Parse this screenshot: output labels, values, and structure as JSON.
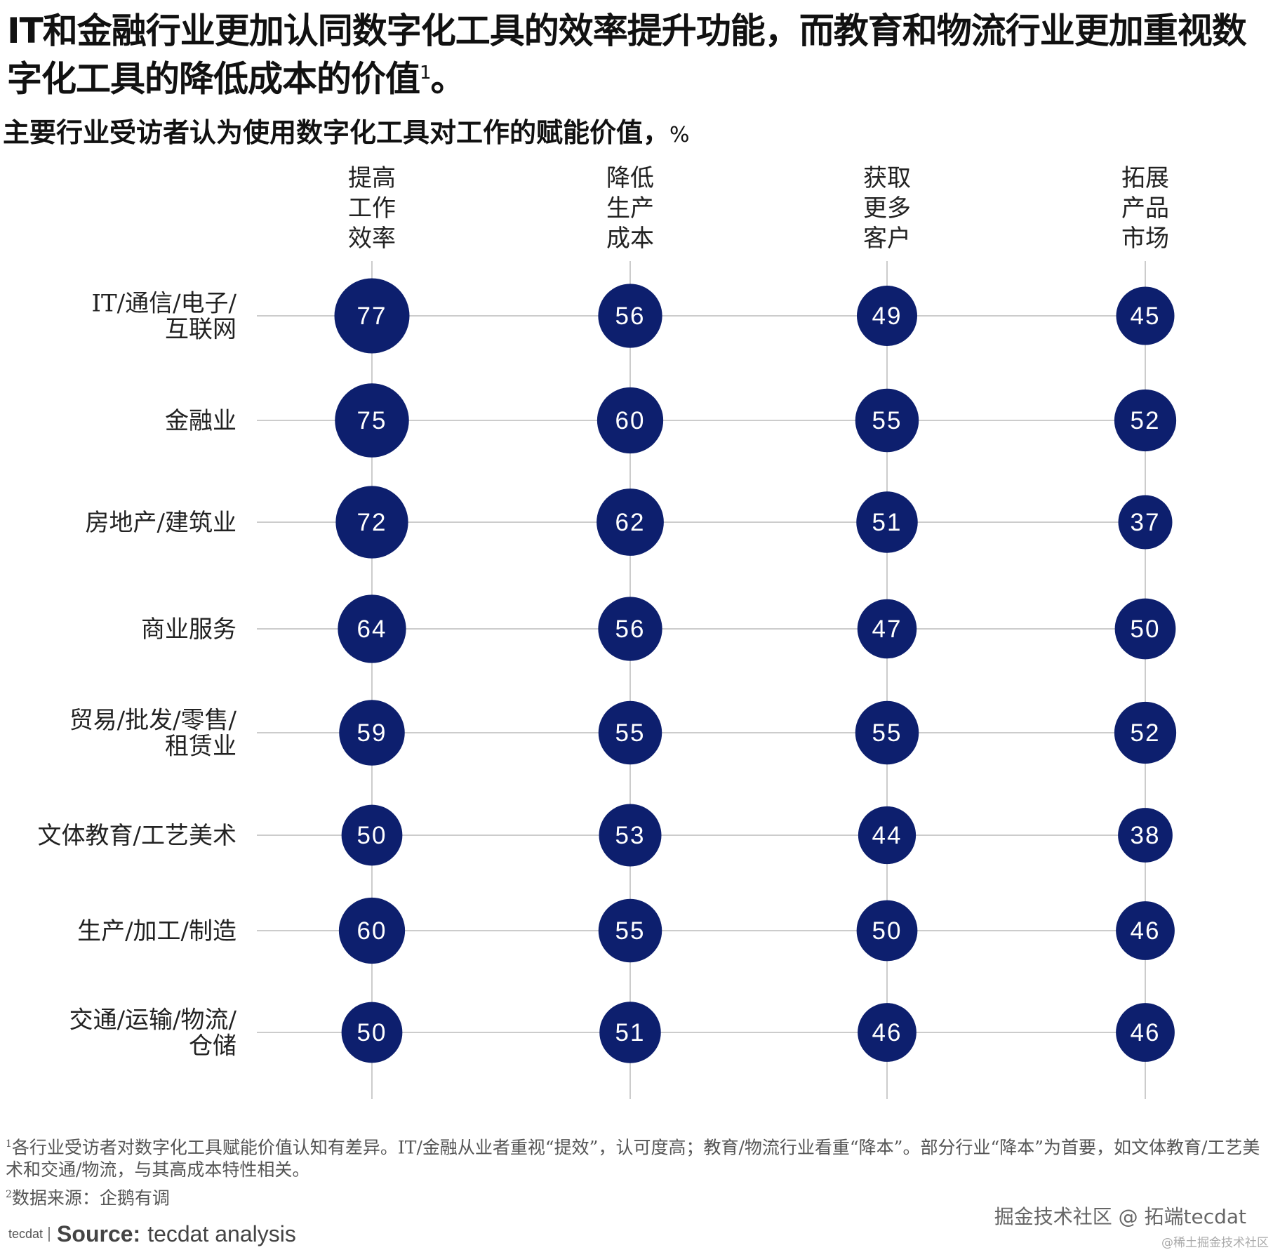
{
  "title": "IT和金融行业更加认同数字化工具的效率提升功能，而教育和物流行业更加重视数字化工具的降低成本的价值",
  "title_sup": "1",
  "title_end": "。",
  "subtitle": "主要行业受访者认为使用数字化工具对工作的赋能价值，",
  "subtitle_unit": "%",
  "colors": {
    "bubble": "#0d1f6e",
    "line": "#bbbbbb"
  },
  "chart_data": {
    "type": "bubble-matrix",
    "title": "主要行业受访者认为使用数字化工具对工作的赋能价值，%",
    "columns": [
      [
        "提高",
        "工作",
        "效率"
      ],
      [
        "降低",
        "生产",
        "成本"
      ],
      [
        "获取",
        "更多",
        "客户"
      ],
      [
        "拓展",
        "产品",
        "市场"
      ]
    ],
    "rows": [
      {
        "label": [
          "IT/通信/电子/",
          "互联网"
        ],
        "values": [
          77,
          56,
          49,
          45
        ]
      },
      {
        "label": [
          "金融业"
        ],
        "values": [
          75,
          60,
          55,
          52
        ]
      },
      {
        "label": [
          "房地产/建筑业"
        ],
        "values": [
          72,
          62,
          51,
          37
        ]
      },
      {
        "label": [
          "商业服务"
        ],
        "values": [
          64,
          56,
          47,
          50
        ]
      },
      {
        "label": [
          "贸易/批发/零售/",
          "租赁业"
        ],
        "values": [
          59,
          55,
          55,
          52
        ]
      },
      {
        "label": [
          "文体教育/工艺美术"
        ],
        "values": [
          50,
          53,
          44,
          38
        ]
      },
      {
        "label": [
          "生产/加工/制造"
        ],
        "values": [
          60,
          55,
          50,
          46
        ]
      },
      {
        "label": [
          "交通/运输/物流/",
          "仓储"
        ],
        "values": [
          50,
          51,
          46,
          46
        ]
      }
    ]
  },
  "footnotes": {
    "note1_sup": "1",
    "note1": "各行业受访者对数字化工具赋能价值认知有差异。IT/金融从业者重视“提效”，认可度高；教育/物流行业看重“降本”。部分行业“降本”为首要，如文体教育/工艺美术和交通/物流，与其高成本特性相关。",
    "note2_sup": "2",
    "note2": "数据来源：企鹅有调"
  },
  "source": {
    "logo": "tecdat",
    "label": "Source:",
    "text": "tecdat analysis"
  },
  "watermark": "掘金技术社区 @ 拓端tecdat",
  "watermark2": "@稀土掘金技术社区"
}
